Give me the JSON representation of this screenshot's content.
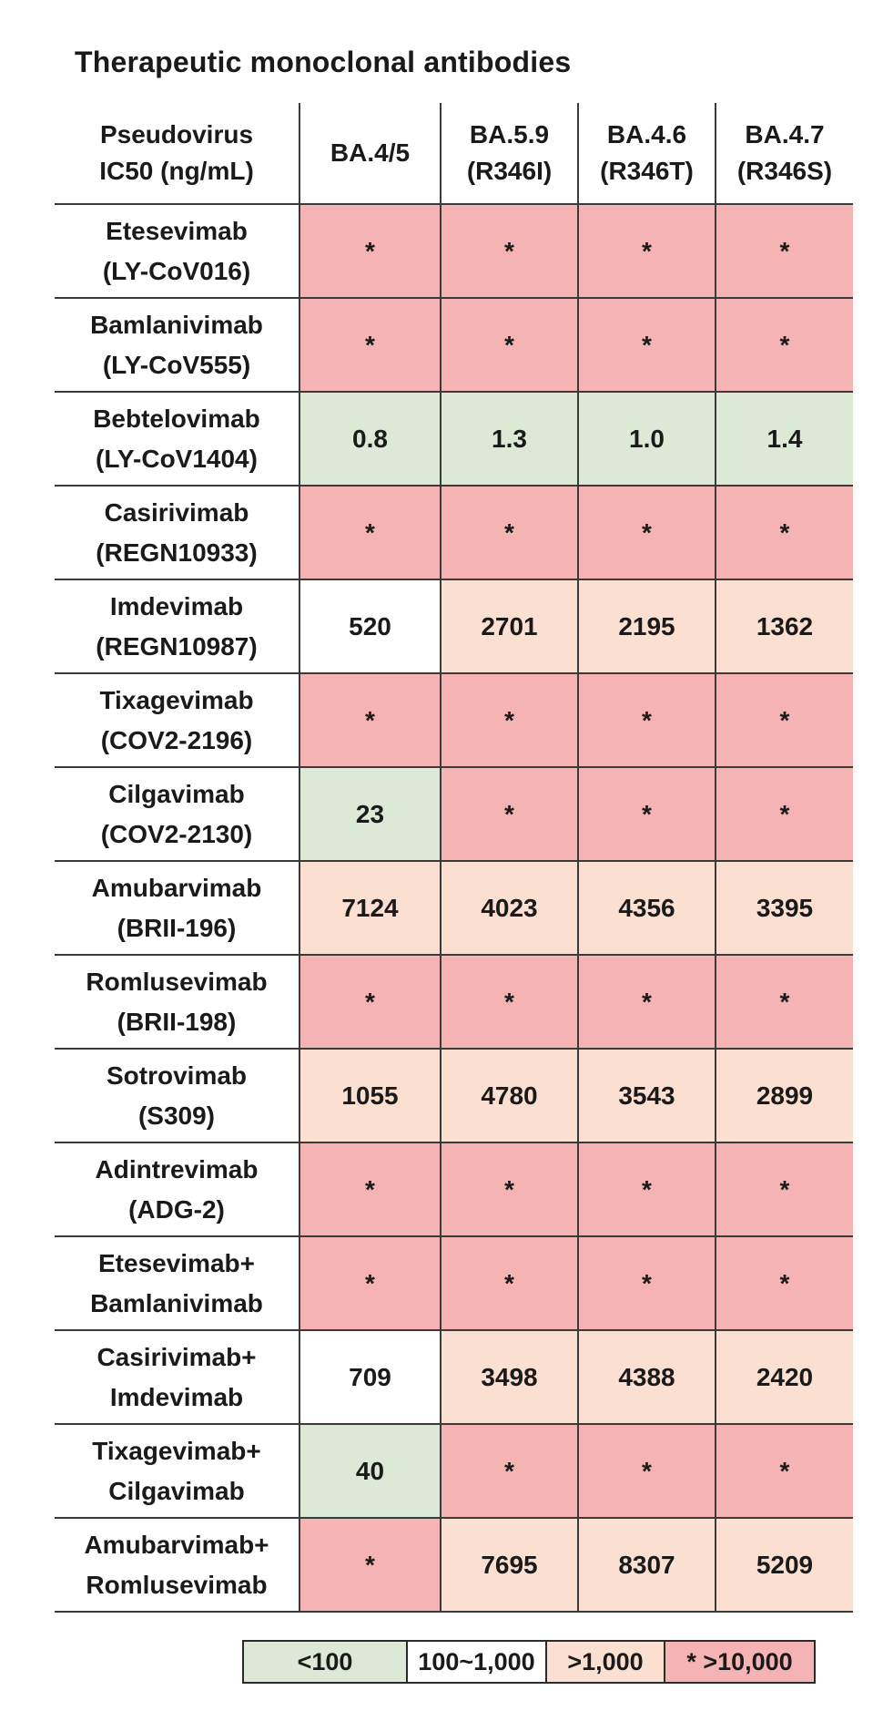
{
  "title": "Therapeutic monoclonal antibodies",
  "colors": {
    "lt100": "#dbe9d6",
    "mid": "#ffffff",
    "gt1k": "#fbe0d2",
    "gt10k": "#f6b3b3"
  },
  "chart_data": {
    "type": "table",
    "title": "Therapeutic monoclonal antibodies",
    "corner_header": [
      "Pseudovirus",
      "IC50 (ng/mL)"
    ],
    "columns": [
      {
        "lines": [
          "BA.4/5"
        ]
      },
      {
        "lines": [
          "BA.5.9",
          "(R346I)"
        ]
      },
      {
        "lines": [
          "BA.4.6",
          "(R346T)"
        ]
      },
      {
        "lines": [
          "BA.4.7",
          "(R346S)"
        ]
      }
    ],
    "rows": [
      {
        "label": [
          "Etesevimab",
          "(LY-CoV016)"
        ],
        "values": [
          "*",
          "*",
          "*",
          "*"
        ],
        "classes": [
          "gt10k",
          "gt10k",
          "gt10k",
          "gt10k"
        ]
      },
      {
        "label": [
          "Bamlanivimab",
          "(LY-CoV555)"
        ],
        "values": [
          "*",
          "*",
          "*",
          "*"
        ],
        "classes": [
          "gt10k",
          "gt10k",
          "gt10k",
          "gt10k"
        ]
      },
      {
        "label": [
          "Bebtelovimab",
          "(LY-CoV1404)"
        ],
        "values": [
          "0.8",
          "1.3",
          "1.0",
          "1.4"
        ],
        "classes": [
          "lt100",
          "lt100",
          "lt100",
          "lt100"
        ]
      },
      {
        "label": [
          "Casirivimab",
          "(REGN10933)"
        ],
        "values": [
          "*",
          "*",
          "*",
          "*"
        ],
        "classes": [
          "gt10k",
          "gt10k",
          "gt10k",
          "gt10k"
        ]
      },
      {
        "label": [
          "Imdevimab",
          "(REGN10987)"
        ],
        "values": [
          "520",
          "2701",
          "2195",
          "1362"
        ],
        "classes": [
          "mid",
          "gt1k",
          "gt1k",
          "gt1k"
        ]
      },
      {
        "label": [
          "Tixagevimab",
          "(COV2-2196)"
        ],
        "values": [
          "*",
          "*",
          "*",
          "*"
        ],
        "classes": [
          "gt10k",
          "gt10k",
          "gt10k",
          "gt10k"
        ]
      },
      {
        "label": [
          "Cilgavimab",
          "(COV2-2130)"
        ],
        "values": [
          "23",
          "*",
          "*",
          "*"
        ],
        "classes": [
          "lt100",
          "gt10k",
          "gt10k",
          "gt10k"
        ]
      },
      {
        "label": [
          "Amubarvimab",
          "(BRII-196)"
        ],
        "values": [
          "7124",
          "4023",
          "4356",
          "3395"
        ],
        "classes": [
          "gt1k",
          "gt1k",
          "gt1k",
          "gt1k"
        ]
      },
      {
        "label": [
          "Romlusevimab",
          "(BRII-198)"
        ],
        "values": [
          "*",
          "*",
          "*",
          "*"
        ],
        "classes": [
          "gt10k",
          "gt10k",
          "gt10k",
          "gt10k"
        ]
      },
      {
        "label": [
          "Sotrovimab",
          "(S309)"
        ],
        "values": [
          "1055",
          "4780",
          "3543",
          "2899"
        ],
        "classes": [
          "gt1k",
          "gt1k",
          "gt1k",
          "gt1k"
        ]
      },
      {
        "label": [
          "Adintrevimab",
          "(ADG-2)"
        ],
        "values": [
          "*",
          "*",
          "*",
          "*"
        ],
        "classes": [
          "gt10k",
          "gt10k",
          "gt10k",
          "gt10k"
        ]
      },
      {
        "label": [
          "Etesevimab+",
          "Bamlanivimab"
        ],
        "values": [
          "*",
          "*",
          "*",
          "*"
        ],
        "classes": [
          "gt10k",
          "gt10k",
          "gt10k",
          "gt10k"
        ]
      },
      {
        "label": [
          "Casirivimab+",
          "Imdevimab"
        ],
        "values": [
          "709",
          "3498",
          "4388",
          "2420"
        ],
        "classes": [
          "mid",
          "gt1k",
          "gt1k",
          "gt1k"
        ]
      },
      {
        "label": [
          "Tixagevimab+",
          "Cilgavimab"
        ],
        "values": [
          "40",
          "*",
          "*",
          "*"
        ],
        "classes": [
          "lt100",
          "gt10k",
          "gt10k",
          "gt10k"
        ]
      },
      {
        "label": [
          "Amubarvimab+",
          "Romlusevimab"
        ],
        "values": [
          "*",
          "7695",
          "8307",
          "5209"
        ],
        "classes": [
          "gt10k",
          "gt1k",
          "gt1k",
          "gt1k"
        ]
      }
    ],
    "legend": [
      {
        "label": "<100",
        "class": "lt100"
      },
      {
        "label": "100~1,000",
        "class": "mid"
      },
      {
        "label": ">1,000",
        "class": "gt1k"
      },
      {
        "label": "* >10,000",
        "class": "gt10k"
      }
    ]
  }
}
